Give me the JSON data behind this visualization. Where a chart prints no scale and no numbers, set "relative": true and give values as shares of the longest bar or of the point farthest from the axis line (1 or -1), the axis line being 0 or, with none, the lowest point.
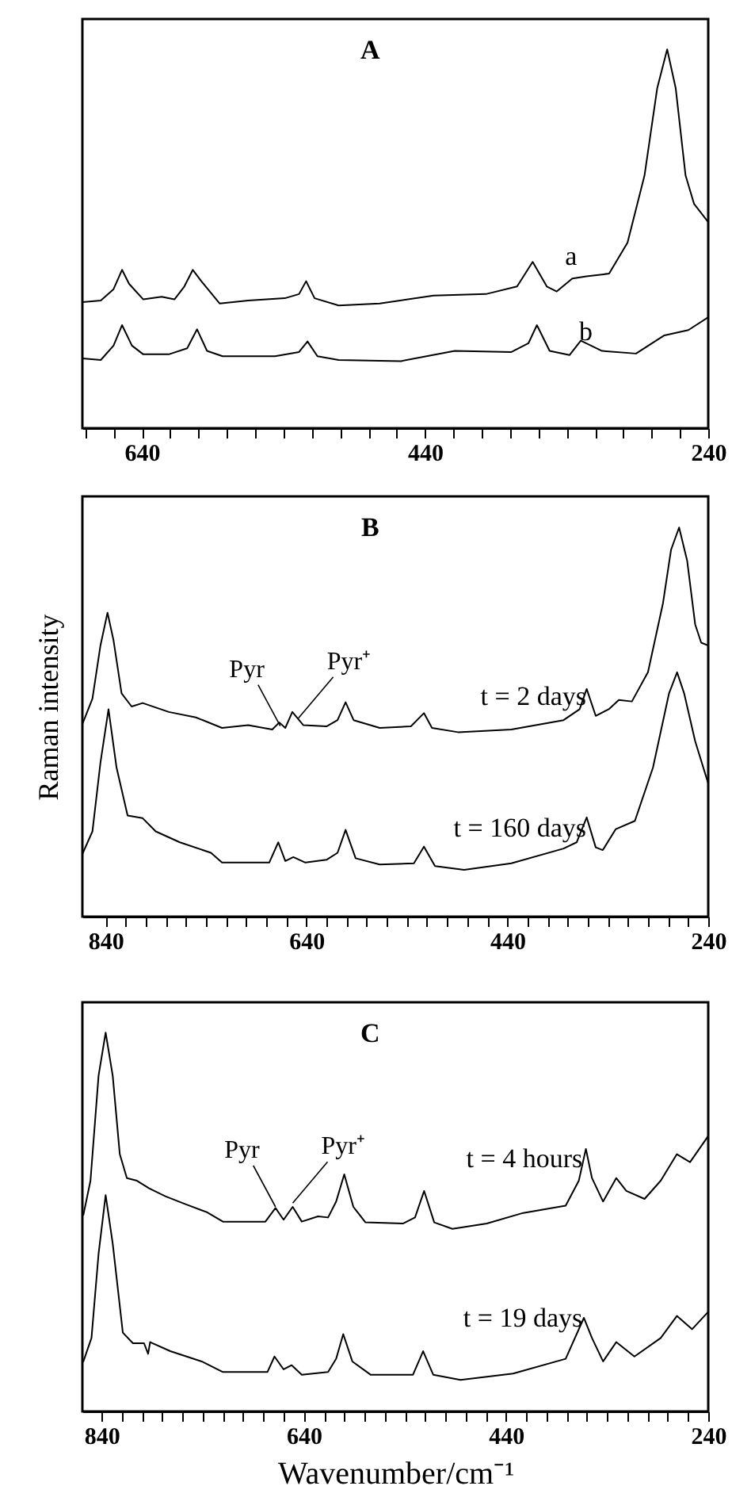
{
  "chart_data": [
    {
      "type": "line",
      "title": "A",
      "relative": true,
      "xlim": [
        682,
        240
      ],
      "xticks": [
        {
          "value": 680,
          "label": null
        },
        {
          "value": 660,
          "label": null
        },
        640,
        {
          "value": 620,
          "label": null
        },
        {
          "value": 600,
          "label": null
        },
        {
          "value": 580,
          "label": null
        },
        {
          "value": 560,
          "label": null
        },
        {
          "value": 540,
          "label": null
        },
        {
          "value": 520,
          "label": null
        },
        {
          "value": 500,
          "label": null
        },
        {
          "value": 480,
          "label": null
        },
        {
          "value": 460,
          "label": null
        },
        440,
        {
          "value": 420,
          "label": null
        },
        {
          "value": 400,
          "label": null
        },
        {
          "value": 380,
          "label": null
        },
        {
          "value": 360,
          "label": null
        },
        {
          "value": 340,
          "label": null
        },
        {
          "value": 320,
          "label": null
        },
        {
          "value": 300,
          "label": null
        },
        {
          "value": 280,
          "label": null
        },
        {
          "value": 260,
          "label": null
        },
        240
      ],
      "series": [
        {
          "name": "a",
          "color": "#000000",
          "x": [
            682,
            669,
            660,
            654,
            649,
            639,
            626,
            617,
            610,
            604,
            598,
            585,
            565,
            539,
            529,
            524,
            518,
            501,
            472,
            434,
            397,
            375,
            364,
            354,
            347,
            336,
            326,
            310,
            297,
            285,
            276,
            269,
            263,
            256,
            250,
            240
          ],
          "values": [
            0.333,
            0.337,
            0.367,
            0.418,
            0.381,
            0.34,
            0.347,
            0.34,
            0.374,
            0.418,
            0.388,
            0.329,
            0.337,
            0.343,
            0.354,
            0.388,
            0.343,
            0.324,
            0.329,
            0.35,
            0.354,
            0.374,
            0.439,
            0.374,
            0.361,
            0.395,
            0.401,
            0.408,
            0.49,
            0.667,
            0.898,
            1.0,
            0.898,
            0.667,
            0.592,
            0.544
          ]
        },
        {
          "name": "b",
          "color": "#000000",
          "x": [
            682,
            669,
            660,
            654,
            647,
            639,
            621,
            608,
            601,
            594,
            583,
            546,
            529,
            523,
            516,
            501,
            457,
            419,
            379,
            367,
            361,
            352,
            338,
            330,
            315,
            291,
            271,
            254,
            240
          ],
          "values": [
            0.184,
            0.18,
            0.218,
            0.272,
            0.218,
            0.195,
            0.195,
            0.211,
            0.261,
            0.204,
            0.19,
            0.19,
            0.201,
            0.229,
            0.19,
            0.18,
            0.177,
            0.204,
            0.201,
            0.224,
            0.272,
            0.204,
            0.193,
            0.231,
            0.204,
            0.197,
            0.245,
            0.259,
            0.293
          ]
        }
      ]
    },
    {
      "type": "line",
      "title": "B",
      "ylabel": "Raman intensity",
      "relative": true,
      "xlim": [
        863,
        240
      ],
      "xticks": [
        840,
        {
          "value": 820,
          "label": null
        },
        {
          "value": 800,
          "label": null
        },
        {
          "value": 780,
          "label": null
        },
        {
          "value": 760,
          "label": null
        },
        {
          "value": 740,
          "label": null
        },
        {
          "value": 720,
          "label": null
        },
        {
          "value": 700,
          "label": null
        },
        {
          "value": 680,
          "label": null
        },
        {
          "value": 660,
          "label": null
        },
        640,
        {
          "value": 620,
          "label": null
        },
        {
          "value": 600,
          "label": null
        },
        {
          "value": 580,
          "label": null
        },
        {
          "value": 560,
          "label": null
        },
        {
          "value": 540,
          "label": null
        },
        {
          "value": 520,
          "label": null
        },
        {
          "value": 500,
          "label": null
        },
        {
          "value": 480,
          "label": null
        },
        {
          "value": 460,
          "label": null
        },
        440,
        {
          "value": 420,
          "label": null
        },
        {
          "value": 400,
          "label": null
        },
        {
          "value": 380,
          "label": null
        },
        {
          "value": 360,
          "label": null
        },
        {
          "value": 340,
          "label": null
        },
        {
          "value": 320,
          "label": null
        },
        {
          "value": 300,
          "label": null
        },
        {
          "value": 280,
          "label": null
        },
        {
          "value": 260,
          "label": null
        },
        240
      ],
      "annotations": [
        {
          "text": "Pyr",
          "x": 666,
          "y": 0.49
        },
        {
          "text": "Pyr⁺",
          "x": 648,
          "y": 0.51
        }
      ],
      "series": [
        {
          "name": "t = 2 days",
          "color": "#000000",
          "x": [
            863,
            853,
            845,
            838,
            832,
            824,
            814,
            803,
            777,
            750,
            724,
            698,
            674,
            667,
            661,
            654,
            643,
            620,
            609,
            601,
            593,
            567,
            536,
            523,
            515,
            489,
            436,
            384,
            368,
            361,
            352,
            339,
            329,
            316,
            300,
            285,
            277,
            269,
            261,
            253,
            247,
            240
          ],
          "values": [
            0.495,
            0.56,
            0.697,
            0.781,
            0.71,
            0.574,
            0.54,
            0.549,
            0.526,
            0.512,
            0.485,
            0.492,
            0.481,
            0.499,
            0.485,
            0.526,
            0.492,
            0.489,
            0.505,
            0.551,
            0.505,
            0.485,
            0.489,
            0.523,
            0.485,
            0.474,
            0.481,
            0.505,
            0.533,
            0.585,
            0.516,
            0.533,
            0.557,
            0.553,
            0.628,
            0.806,
            0.943,
            1.0,
            0.915,
            0.751,
            0.704,
            0.697
          ]
        },
        {
          "name": "t = 160 days",
          "color": "#000000",
          "x": [
            863,
            853,
            845,
            837,
            829,
            818,
            803,
            790,
            766,
            735,
            724,
            677,
            668,
            661,
            653,
            641,
            620,
            609,
            601,
            591,
            567,
            533,
            523,
            512,
            483,
            436,
            384,
            371,
            361,
            352,
            345,
            332,
            313,
            295,
            279,
            271,
            264,
            253,
            240
          ],
          "values": [
            0.161,
            0.219,
            0.396,
            0.533,
            0.383,
            0.26,
            0.253,
            0.219,
            0.191,
            0.164,
            0.139,
            0.139,
            0.191,
            0.143,
            0.153,
            0.139,
            0.146,
            0.164,
            0.223,
            0.15,
            0.134,
            0.137,
            0.18,
            0.13,
            0.12,
            0.137,
            0.175,
            0.191,
            0.255,
            0.178,
            0.171,
            0.225,
            0.246,
            0.383,
            0.574,
            0.628,
            0.574,
            0.451,
            0.342
          ]
        }
      ]
    },
    {
      "type": "line",
      "title": "C",
      "xlabel": "Wavenumber/cm⁻¹",
      "relative": true,
      "xlim": [
        859,
        240
      ],
      "xticks": [
        840,
        {
          "value": 820,
          "label": null
        },
        {
          "value": 800,
          "label": null
        },
        {
          "value": 780,
          "label": null
        },
        {
          "value": 760,
          "label": null
        },
        {
          "value": 740,
          "label": null
        },
        {
          "value": 720,
          "label": null
        },
        {
          "value": 700,
          "label": null
        },
        {
          "value": 680,
          "label": null
        },
        {
          "value": 660,
          "label": null
        },
        640,
        {
          "value": 620,
          "label": null
        },
        {
          "value": 600,
          "label": null
        },
        {
          "value": 580,
          "label": null
        },
        {
          "value": 560,
          "label": null
        },
        {
          "value": 540,
          "label": null
        },
        {
          "value": 520,
          "label": null
        },
        {
          "value": 500,
          "label": null
        },
        {
          "value": 480,
          "label": null
        },
        {
          "value": 460,
          "label": null
        },
        440,
        {
          "value": 420,
          "label": null
        },
        {
          "value": 400,
          "label": null
        },
        {
          "value": 380,
          "label": null
        },
        {
          "value": 360,
          "label": null
        },
        {
          "value": 340,
          "label": null
        },
        {
          "value": 320,
          "label": null
        },
        {
          "value": 300,
          "label": null
        },
        {
          "value": 280,
          "label": null
        },
        {
          "value": 260,
          "label": null
        },
        240
      ],
      "annotations": [
        {
          "text": "Pyr",
          "x": 668,
          "y": 0.54
        },
        {
          "text": "Pyr⁺",
          "x": 651,
          "y": 0.55
        }
      ],
      "series": [
        {
          "name": "t = 4 hours",
          "color": "#000000",
          "x": [
            858,
            851,
            843,
            836,
            829,
            822,
            815,
            805,
            793,
            777,
            757,
            736,
            720,
            678,
            668,
            660,
            651,
            642,
            626,
            616,
            608,
            600,
            591,
            579,
            542,
            530,
            521,
            511,
            493,
            459,
            423,
            381,
            368,
            361,
            355,
            344,
            331,
            321,
            303,
            287,
            271,
            258,
            240
          ],
          "values": [
            0.519,
            0.609,
            0.886,
            1.0,
            0.886,
            0.679,
            0.616,
            0.609,
            0.589,
            0.568,
            0.547,
            0.526,
            0.501,
            0.501,
            0.537,
            0.506,
            0.54,
            0.501,
            0.515,
            0.512,
            0.554,
            0.626,
            0.54,
            0.499,
            0.496,
            0.512,
            0.582,
            0.499,
            0.482,
            0.496,
            0.524,
            0.543,
            0.609,
            0.693,
            0.616,
            0.554,
            0.616,
            0.582,
            0.561,
            0.609,
            0.679,
            0.658,
            0.727
          ]
        },
        {
          "name": "t = 19 days",
          "color": "#000000",
          "x": [
            858,
            850,
            843,
            836,
            829,
            819,
            809,
            798,
            794,
            792,
            772,
            741,
            720,
            676,
            669,
            660,
            652,
            642,
            616,
            608,
            601,
            592,
            574,
            532,
            522,
            512,
            485,
            433,
            381,
            363,
            355,
            344,
            331,
            313,
            287,
            271,
            256,
            240
          ],
          "values": [
            0.132,
            0.194,
            0.416,
            0.571,
            0.443,
            0.208,
            0.18,
            0.18,
            0.152,
            0.183,
            0.159,
            0.132,
            0.104,
            0.104,
            0.145,
            0.111,
            0.122,
            0.097,
            0.104,
            0.139,
            0.204,
            0.132,
            0.097,
            0.097,
            0.159,
            0.097,
            0.083,
            0.1,
            0.139,
            0.247,
            0.194,
            0.132,
            0.183,
            0.145,
            0.194,
            0.252,
            0.217,
            0.263
          ]
        }
      ]
    }
  ]
}
